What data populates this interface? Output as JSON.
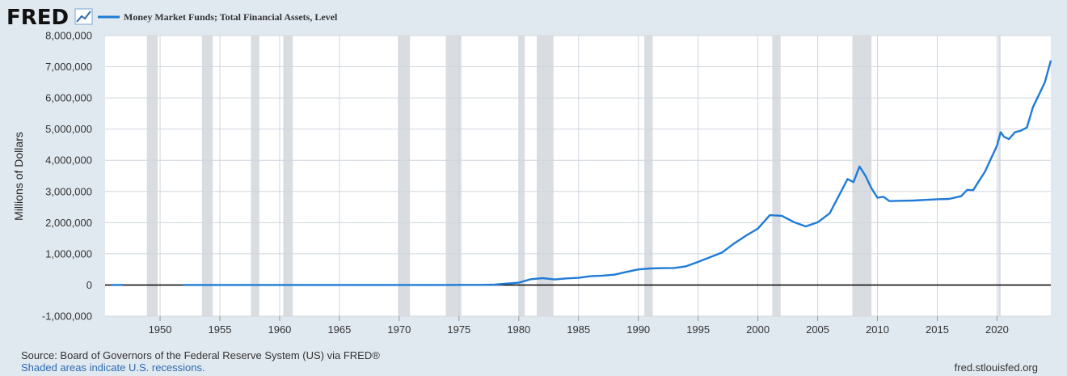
{
  "header": {
    "logo_text": "FRED",
    "logo_icon": "trend-line-icon",
    "legend_label": "Money Market Funds; Total Financial Assets, Level"
  },
  "footer": {
    "source": "Source: Board of Governors of the Federal Reserve System (US) via FRED®",
    "note": "Shaded areas indicate U.S. recessions.",
    "url": "fred.stlouisfed.org"
  },
  "colors": {
    "background": "#e1e9f0",
    "plot_bg": "#ffffff",
    "series": "#1f7bd6",
    "grid": "#cfd6de",
    "recession": "#d9dde2",
    "zero_line": "#000000",
    "note_text": "#2d6ab3"
  },
  "chart_data": {
    "type": "line",
    "title": "",
    "ylabel": "Millions of Dollars",
    "xlabel": "",
    "xlim": [
      1945.4,
      2024.5
    ],
    "ylim": [
      -1000000,
      8000000
    ],
    "y_ticks": [
      {
        "value": -1000000,
        "label": "-1,000,000"
      },
      {
        "value": 0,
        "label": "0"
      },
      {
        "value": 1000000,
        "label": "1,000,000"
      },
      {
        "value": 2000000,
        "label": "2,000,000"
      },
      {
        "value": 3000000,
        "label": "3,000,000"
      },
      {
        "value": 4000000,
        "label": "4,000,000"
      },
      {
        "value": 5000000,
        "label": "5,000,000"
      },
      {
        "value": 6000000,
        "label": "6,000,000"
      },
      {
        "value": 7000000,
        "label": "7,000,000"
      },
      {
        "value": 8000000,
        "label": "8,000,000"
      }
    ],
    "x_ticks": [
      1950,
      1955,
      1960,
      1965,
      1970,
      1975,
      1980,
      1985,
      1990,
      1995,
      2000,
      2005,
      2010,
      2015,
      2020
    ],
    "recessions": [
      [
        1948.9,
        1949.8
      ],
      [
        1953.5,
        1954.4
      ],
      [
        1957.6,
        1958.3
      ],
      [
        1960.3,
        1961.1
      ],
      [
        1969.9,
        1970.9
      ],
      [
        1973.9,
        1975.2
      ],
      [
        1980.0,
        1980.5
      ],
      [
        1981.5,
        1982.9
      ],
      [
        1990.5,
        1991.2
      ],
      [
        2001.2,
        2001.9
      ],
      [
        2007.9,
        2009.5
      ],
      [
        2020.1,
        2020.3
      ]
    ],
    "grid": true,
    "series": [
      {
        "name": "Money Market Funds; Total Financial Assets, Level",
        "segments": [
          [
            [
              1945.9,
              0
            ],
            [
              1946.9,
              0
            ]
          ],
          [
            [
              1951.9,
              0
            ],
            [
              1960,
              0
            ],
            [
              1970,
              0
            ],
            [
              1974,
              1000
            ],
            [
              1975,
              3700
            ],
            [
              1977,
              3900
            ],
            [
              1978,
              10800
            ],
            [
              1979,
              45000
            ],
            [
              1980,
              75000
            ],
            [
              1981,
              186000
            ],
            [
              1982,
              220000
            ],
            [
              1983,
              178000
            ],
            [
              1984,
              210000
            ],
            [
              1985,
              230000
            ],
            [
              1986,
              280000
            ],
            [
              1987,
              300000
            ],
            [
              1988,
              330000
            ],
            [
              1989,
              420000
            ],
            [
              1990,
              500000
            ],
            [
              1991,
              530000
            ],
            [
              1992,
              540000
            ],
            [
              1993,
              545000
            ],
            [
              1994,
              600000
            ],
            [
              1995,
              740000
            ],
            [
              1996,
              890000
            ],
            [
              1997,
              1040000
            ],
            [
              1998,
              1330000
            ],
            [
              1999,
              1580000
            ],
            [
              2000,
              1810000
            ],
            [
              2001,
              2240000
            ],
            [
              2002,
              2220000
            ],
            [
              2003,
              2020000
            ],
            [
              2004,
              1880000
            ],
            [
              2005,
              2010000
            ],
            [
              2006,
              2300000
            ],
            [
              2007,
              3030000
            ],
            [
              2007.5,
              3400000
            ],
            [
              2008,
              3300000
            ],
            [
              2008.5,
              3800000
            ],
            [
              2009,
              3500000
            ],
            [
              2009.5,
              3100000
            ],
            [
              2010,
              2800000
            ],
            [
              2010.5,
              2830000
            ],
            [
              2011,
              2690000
            ],
            [
              2012,
              2700000
            ],
            [
              2013,
              2710000
            ],
            [
              2014,
              2730000
            ],
            [
              2015,
              2750000
            ],
            [
              2016,
              2760000
            ],
            [
              2017,
              2850000
            ],
            [
              2017.5,
              3050000
            ],
            [
              2018,
              3040000
            ],
            [
              2019,
              3640000
            ],
            [
              2020,
              4470000
            ],
            [
              2020.3,
              4900000
            ],
            [
              2020.6,
              4750000
            ],
            [
              2021,
              4680000
            ],
            [
              2021.5,
              4900000
            ],
            [
              2022,
              4950000
            ],
            [
              2022.5,
              5050000
            ],
            [
              2023,
              5700000
            ],
            [
              2023.5,
              6100000
            ],
            [
              2024,
              6500000
            ],
            [
              2024.5,
              7200000
            ]
          ]
        ]
      }
    ]
  }
}
